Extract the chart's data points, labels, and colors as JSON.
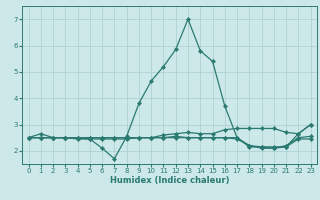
{
  "xlabel": "Humidex (Indice chaleur)",
  "ylabel": "",
  "xlim": [
    -0.5,
    23.5
  ],
  "ylim": [
    1.5,
    7.5
  ],
  "yticks": [
    2,
    3,
    4,
    5,
    6,
    7
  ],
  "xticks": [
    0,
    1,
    2,
    3,
    4,
    5,
    6,
    7,
    8,
    9,
    10,
    11,
    12,
    13,
    14,
    15,
    16,
    17,
    18,
    19,
    20,
    21,
    22,
    23
  ],
  "bg_color": "#cce8e8",
  "line_color": "#2a7a72",
  "grid_color": "#aacece",
  "lines": [
    {
      "x": [
        0,
        1,
        2,
        3,
        4,
        5,
        6,
        7,
        8,
        9,
        10,
        11,
        12,
        13,
        14,
        15,
        16,
        17,
        18,
        19,
        20,
        21,
        22,
        23
      ],
      "y": [
        2.5,
        2.65,
        2.5,
        2.5,
        2.45,
        2.45,
        2.1,
        1.7,
        2.55,
        3.8,
        4.65,
        5.2,
        5.85,
        7.0,
        5.8,
        5.4,
        3.7,
        2.5,
        2.2,
        2.15,
        2.1,
        2.15,
        2.65,
        3.0
      ]
    },
    {
      "x": [
        0,
        1,
        2,
        3,
        4,
        5,
        6,
        7,
        8,
        9,
        10,
        11,
        12,
        13,
        14,
        15,
        16,
        17,
        18,
        19,
        20,
        21,
        22,
        23
      ],
      "y": [
        2.5,
        2.5,
        2.5,
        2.5,
        2.5,
        2.45,
        2.45,
        2.45,
        2.45,
        2.5,
        2.5,
        2.5,
        2.5,
        2.5,
        2.5,
        2.5,
        2.5,
        2.5,
        2.15,
        2.15,
        2.15,
        2.15,
        2.45,
        2.45
      ]
    },
    {
      "x": [
        0,
        1,
        2,
        3,
        4,
        5,
        6,
        7,
        8,
        9,
        10,
        11,
        12,
        13,
        14,
        15,
        16,
        17,
        18,
        19,
        20,
        21,
        22,
        23
      ],
      "y": [
        2.5,
        2.5,
        2.5,
        2.5,
        2.5,
        2.5,
        2.5,
        2.5,
        2.5,
        2.5,
        2.5,
        2.6,
        2.65,
        2.7,
        2.65,
        2.65,
        2.8,
        2.85,
        2.85,
        2.85,
        2.85,
        2.7,
        2.65,
        3.0
      ]
    },
    {
      "x": [
        0,
        1,
        2,
        3,
        4,
        5,
        6,
        7,
        8,
        9,
        10,
        11,
        12,
        13,
        14,
        15,
        16,
        17,
        18,
        19,
        20,
        21,
        22,
        23
      ],
      "y": [
        2.5,
        2.5,
        2.5,
        2.5,
        2.5,
        2.5,
        2.5,
        2.5,
        2.5,
        2.5,
        2.5,
        2.5,
        2.55,
        2.5,
        2.5,
        2.5,
        2.5,
        2.45,
        2.2,
        2.1,
        2.1,
        2.2,
        2.5,
        2.55
      ]
    }
  ],
  "tick_labelsize": 5.0,
  "xlabel_fontsize": 6.0,
  "marker_size": 2.2,
  "linewidth": 0.9
}
